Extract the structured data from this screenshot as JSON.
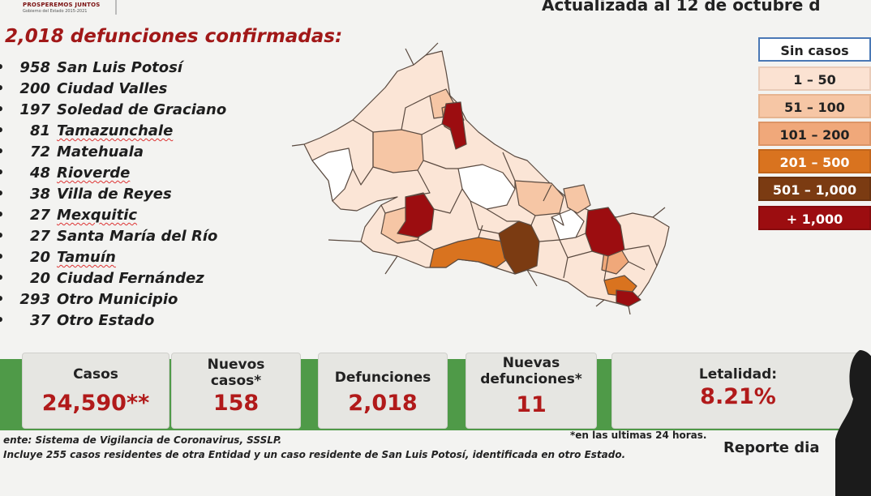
{
  "header": {
    "org_line1": "PROSPEREMOS JUNTOS",
    "org_line2": "Gobierno del Estado 2015-2021",
    "updated": "Actualizada al 12 de octubre d"
  },
  "deaths_title": "2,018 defunciones confirmadas:",
  "municipalities": [
    {
      "prefix": "• ",
      "count": "958",
      "name": "San Luis Potosí",
      "underlined": false
    },
    {
      "prefix": "• ",
      "count": "200",
      "name": "Ciudad Valles",
      "underlined": false
    },
    {
      "prefix": "• ",
      "count": "197",
      "name": "Soledad de Graciano",
      "underlined": false
    },
    {
      "prefix": "• ",
      "count": "81",
      "name": "Tamazunchale",
      "underlined": true
    },
    {
      "prefix": "• ",
      "count": "72",
      "name": "Matehuala",
      "underlined": false
    },
    {
      "prefix": "• ",
      "count": "48",
      "name": "Rioverde",
      "underlined": true
    },
    {
      "prefix": "• ",
      "count": "38",
      "name": "Villa de Reyes",
      "underlined": false
    },
    {
      "prefix": "• ",
      "count": "27",
      "name": "Mexquitic",
      "underlined": true
    },
    {
      "prefix": "• ",
      "count": "27",
      "name": "Santa María del Río",
      "underlined": false
    },
    {
      "prefix": "• ",
      "count": "20",
      "name": "Tamuín",
      "underlined": true
    },
    {
      "prefix": "• ",
      "count": "20",
      "name": "Ciudad Fernández",
      "underlined": false
    },
    {
      "prefix": "• ",
      "count": "293",
      "name": "Otro Municipio",
      "underlined": false
    },
    {
      "prefix": "• ",
      "count": "37",
      "name": "Otro Estado",
      "underlined": false
    }
  ],
  "legend": [
    {
      "label": "Sin casos",
      "bg": "#ffffff",
      "fg": "#222222",
      "border": "#4a78b5"
    },
    {
      "label": "1 – 50",
      "bg": "#fbe2d2",
      "fg": "#222222",
      "border": "#e9cbb8"
    },
    {
      "label": "51 – 100",
      "bg": "#f6c6a5",
      "fg": "#222222",
      "border": "#e6b490"
    },
    {
      "label": "101 – 200",
      "bg": "#f0a87a",
      "fg": "#222222",
      "border": "#dc9466"
    },
    {
      "label": "201 – 500",
      "bg": "#d9731f",
      "fg": "#ffffff",
      "border": "#c3651a"
    },
    {
      "label": "501 – 1,000",
      "bg": "#7b3b12",
      "fg": "#ffffff",
      "border": "#6a320f"
    },
    {
      "label": "+ 1,000",
      "bg": "#9c0d10",
      "fg": "#ffffff",
      "border": "#870b0d"
    }
  ],
  "stats": {
    "casos_label": "Casos",
    "casos_value": "24,590**",
    "nuevos_casos_label1": "Nuevos",
    "nuevos_casos_label2": "casos*",
    "nuevos_casos_value": "158",
    "defunciones_label": "Defunciones",
    "defunciones_value": "2,018",
    "nuevas_def_label1": "Nuevas",
    "nuevas_def_label2": "defunciones*",
    "nuevas_def_value": "11",
    "letalidad_label": "Letalidad:",
    "letalidad_value": "8.21%"
  },
  "footnotes": {
    "source": "ente: Sistema de Vigilancia de Coronavirus, SSSLP.",
    "last24": "*en las ultimas 24 horas.",
    "includes": "Incluye 255 casos residentes de otra Entidad y un caso residente de San Luis Potosí, identificada en otro Estado.",
    "report": "Reporte dia"
  }
}
